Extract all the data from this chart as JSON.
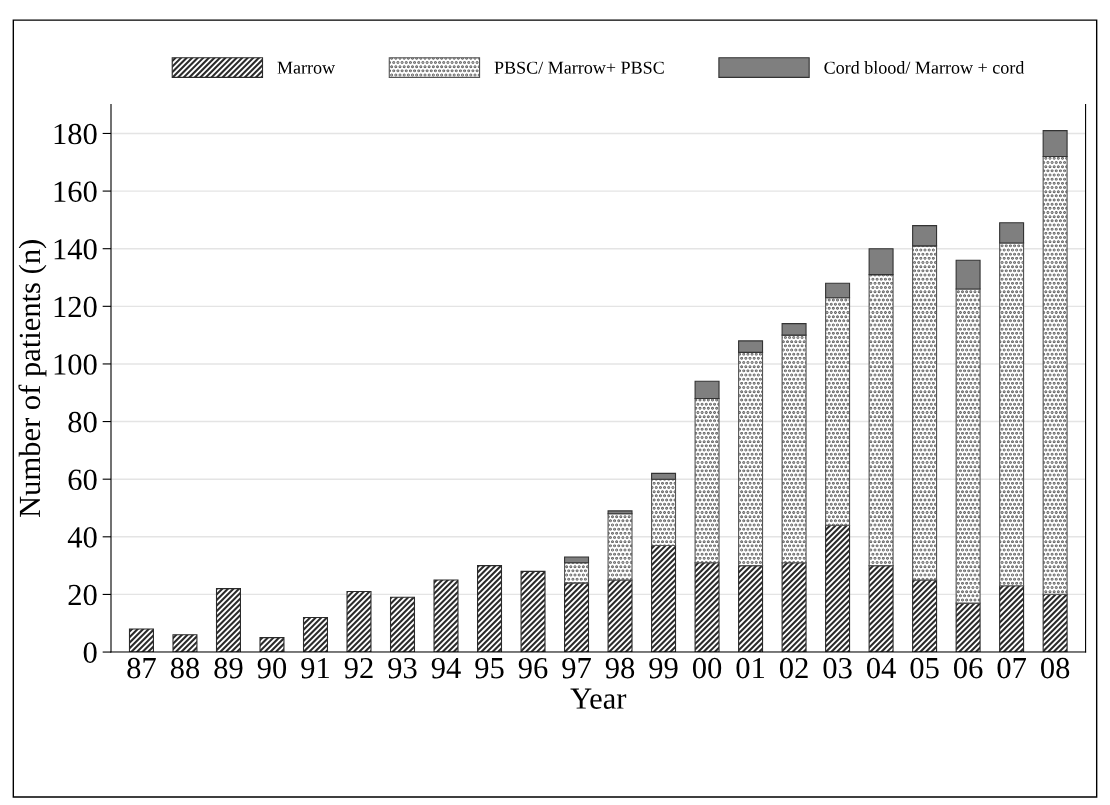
{
  "chart_data": {
    "type": "bar",
    "stacked": true,
    "xlabel": "Year",
    "ylabel": "Number of patients (n)",
    "categories": [
      "87",
      "88",
      "89",
      "90",
      "91",
      "92",
      "93",
      "94",
      "95",
      "96",
      "97",
      "98",
      "99",
      "00",
      "01",
      "02",
      "03",
      "04",
      "05",
      "06",
      "07",
      "08"
    ],
    "series": [
      {
        "name": "Marrow",
        "color": "#2b2b2b",
        "values": [
          8,
          6,
          22,
          5,
          12,
          21,
          19,
          25,
          30,
          28,
          24,
          25,
          37,
          31,
          30,
          31,
          44,
          30,
          25,
          17,
          23,
          20
        ]
      },
      {
        "name": "PBSC/ Marrow+ PBSC",
        "color": "#555555",
        "values": [
          null,
          null,
          null,
          null,
          null,
          null,
          null,
          null,
          null,
          null,
          7,
          23,
          23,
          57,
          74,
          79,
          79,
          101,
          116,
          109,
          119,
          152
        ]
      },
      {
        "name": "Cord blood/ Marrow + cord",
        "color": "#7f7f7f",
        "values": [
          null,
          null,
          null,
          null,
          null,
          null,
          null,
          null,
          null,
          null,
          2,
          1,
          2,
          6,
          4,
          4,
          5,
          9,
          7,
          10,
          7,
          9
        ]
      }
    ],
    "ylim": [
      0,
      190
    ],
    "yticks": [
      0,
      20,
      40,
      60,
      80,
      100,
      120,
      140,
      160,
      180
    ],
    "grid": "y",
    "legend": "top"
  }
}
